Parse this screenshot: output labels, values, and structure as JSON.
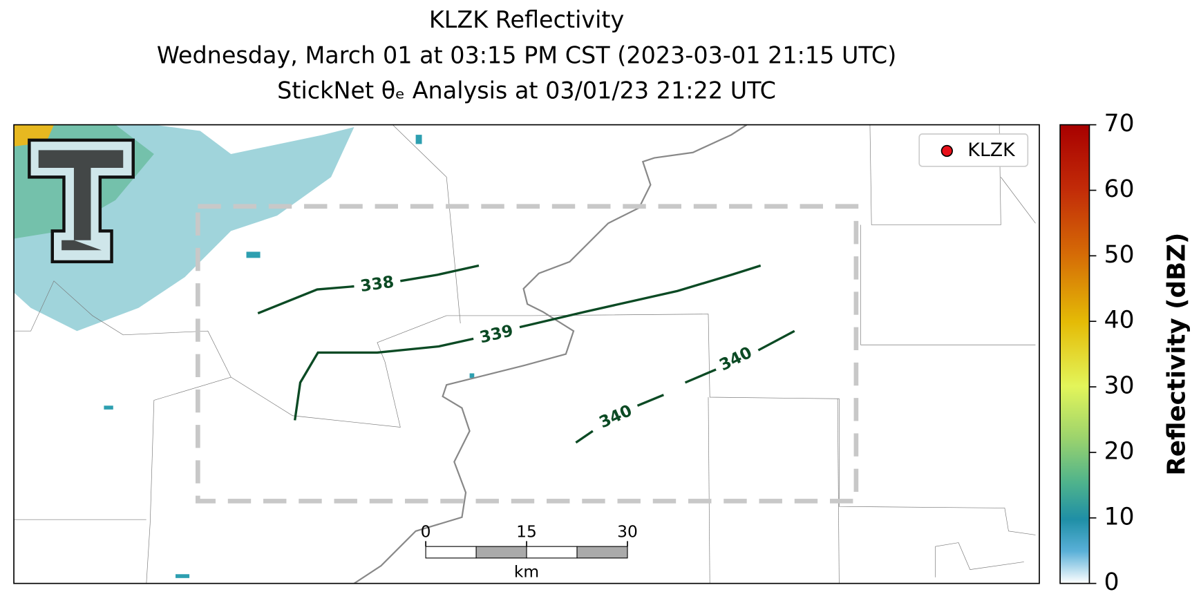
{
  "title": {
    "line1": "KLZK Reflectivity",
    "line2": "Wednesday, March 01 at 03:15 PM CST (2023-03-01 21:15 UTC)",
    "line3": "StickNet θₑ Analysis at 03/01/23 21:22 UTC"
  },
  "legend": {
    "label": "KLZK",
    "color": "#e8101a"
  },
  "colorbar": {
    "label": "Reflectivity (dBZ)",
    "lim": [
      0,
      70
    ],
    "ticks": [
      0,
      10,
      20,
      30,
      40,
      50,
      60,
      70
    ]
  },
  "contours": [
    {
      "label": "338"
    },
    {
      "label": "339"
    },
    {
      "label": "340"
    },
    {
      "label": "340"
    }
  ],
  "scalebar": {
    "ticks": [
      0,
      15,
      30
    ],
    "unit": "km"
  }
}
